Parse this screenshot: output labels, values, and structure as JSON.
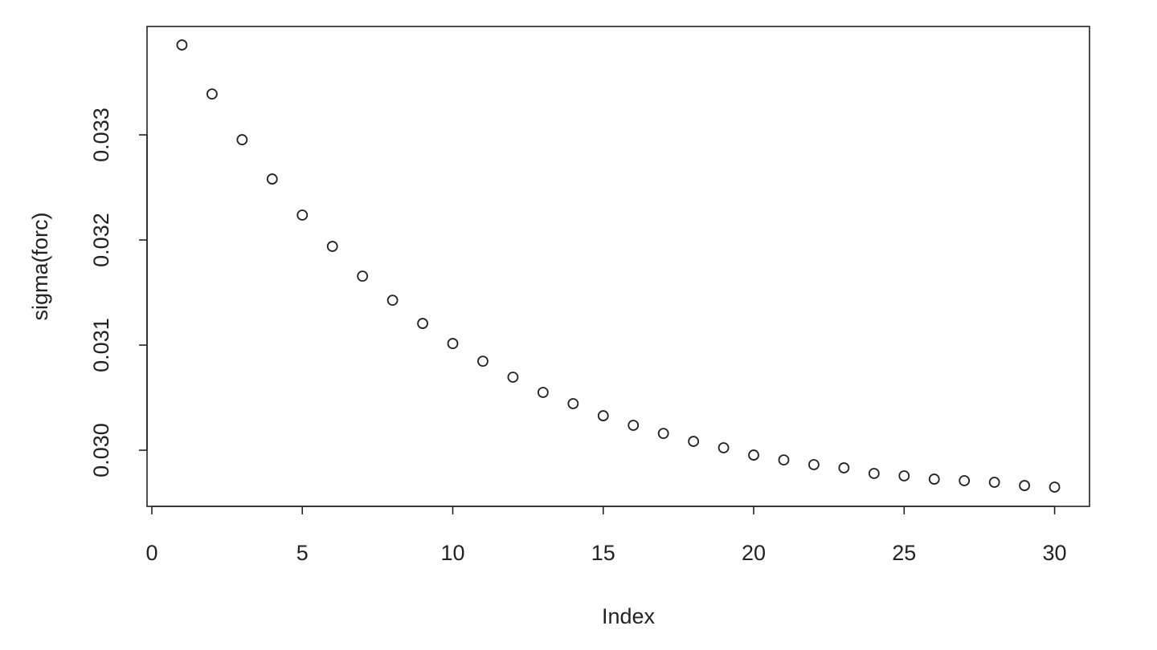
{
  "chart_data": {
    "type": "scatter",
    "x_label": "Index",
    "y_label": "sigma(forc)",
    "x": [
      1,
      2,
      3,
      4,
      5,
      6,
      7,
      8,
      9,
      10,
      11,
      12,
      13,
      14,
      15,
      16,
      17,
      18,
      19,
      20,
      21,
      22,
      23,
      24,
      25,
      26,
      27,
      28,
      29,
      30
    ],
    "values": [
      0.033855,
      0.033389,
      0.032954,
      0.03258,
      0.032237,
      0.031939,
      0.031656,
      0.031427,
      0.031206,
      0.031015,
      0.030847,
      0.030695,
      0.03055,
      0.030443,
      0.030328,
      0.030237,
      0.03016,
      0.030084,
      0.030023,
      0.029954,
      0.029908,
      0.029863,
      0.029832,
      0.029779,
      0.029756,
      0.029725,
      0.02971,
      0.029695,
      0.029664,
      0.029649
    ],
    "color": "#222222",
    "xlim": [
      -0.16,
      31.16
    ],
    "ylim": [
      0.029466,
      0.034031
    ],
    "xticks": [
      0,
      5,
      10,
      15,
      20,
      25,
      30
    ],
    "yticks": [
      {
        "value": 0.03,
        "label": "0.030"
      },
      0.031,
      0.032,
      0.033
    ]
  }
}
